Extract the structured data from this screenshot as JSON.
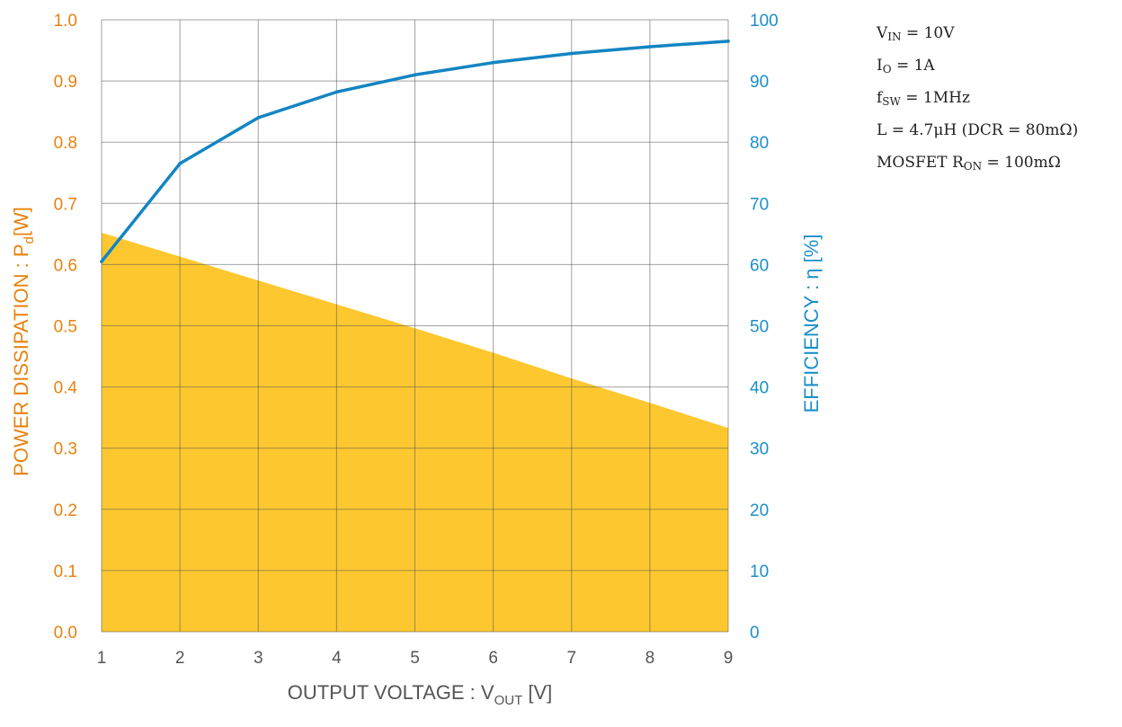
{
  "chart_data": {
    "type": "line",
    "x": [
      1,
      2,
      3,
      4,
      5,
      6,
      7,
      8,
      9
    ],
    "xlabel": {
      "main": "OUTPUT VOLTAGE : V",
      "sub": "OUT",
      "unit": " [V]"
    },
    "xlim": [
      1,
      9
    ],
    "x_ticks": [
      "1",
      "2",
      "3",
      "4",
      "5",
      "6",
      "7",
      "8",
      "9"
    ],
    "ylabel_left": {
      "main": "POWER DISSIPATION : P",
      "sub": "d",
      "unit": "[W]"
    },
    "ylim_left": [
      0,
      1.0
    ],
    "y_ticks_left": [
      "0.0",
      "0.1",
      "0.2",
      "0.3",
      "0.4",
      "0.5",
      "0.6",
      "0.7",
      "0.8",
      "0.9",
      "1.0"
    ],
    "ylabel_right": "EFFICIENCY : η [%]",
    "ylim_right": [
      0,
      100
    ],
    "y_ticks_right": [
      "0",
      "10",
      "20",
      "30",
      "40",
      "50",
      "60",
      "70",
      "80",
      "90",
      "100"
    ],
    "grid": true,
    "series": [
      {
        "axis": "left",
        "type": "area",
        "values": [
          0.652,
          0.613,
          0.574,
          0.535,
          0.496,
          0.456,
          0.414,
          0.374,
          0.333
        ],
        "color": "#FDC82F"
      },
      {
        "axis": "right",
        "type": "line",
        "values": [
          60.5,
          76.5,
          84.0,
          88.2,
          91.0,
          93.0,
          94.5,
          95.6,
          96.5
        ],
        "color": "#1385C3"
      }
    ],
    "colors": {
      "left_axis": "#E8820F",
      "right_axis": "#1A8FC9",
      "grid": "#555555"
    }
  },
  "conditions": [
    {
      "main": "V",
      "sub": "IN",
      "rest": " = 10V"
    },
    {
      "main": "I",
      "sub": "O",
      "rest": " = 1A"
    },
    {
      "main": "f",
      "sub": "SW",
      "rest": " = 1MHz"
    },
    {
      "main": "L = 4.7μH (DCR = 80mΩ)",
      "sub": "",
      "rest": ""
    },
    {
      "main": "MOSFET R",
      "sub": "ON",
      "rest": " = 100mΩ"
    }
  ]
}
